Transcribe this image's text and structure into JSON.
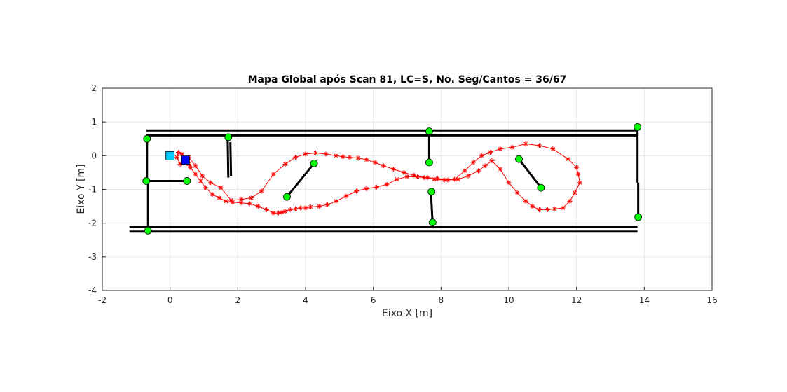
{
  "chart_data": {
    "type": "scatter",
    "title": "Mapa Global após Scan 81, LC=S, No. Seg/Cantos = 36/67",
    "xlabel": "Eixo X [m]",
    "ylabel": "Eixo Y [m]",
    "xlim": [
      -2,
      16
    ],
    "ylim": [
      -4,
      2
    ],
    "xticks": [
      "-2",
      "0",
      "2",
      "4",
      "6",
      "8",
      "10",
      "12",
      "14",
      "16"
    ],
    "yticks": [
      "2",
      "1",
      "0",
      "-1",
      "-2",
      "-3",
      "-4"
    ],
    "grid": true,
    "colors": {
      "walls": "#000000",
      "corners": "#00ff00",
      "trajectory": "#ff0000",
      "start_marker": "#00ccff",
      "robot_marker": "#0000ff",
      "grid": "#e6e6e6"
    },
    "wall_segments": [
      {
        "x": [
          -0.7,
          13.8
        ],
        "y": [
          0.75,
          0.75
        ]
      },
      {
        "x": [
          -0.7,
          13.8
        ],
        "y": [
          0.6,
          0.6
        ]
      },
      {
        "x": [
          -1.2,
          13.8
        ],
        "y": [
          -2.12,
          -2.12
        ]
      },
      {
        "x": [
          -1.2,
          13.8
        ],
        "y": [
          -2.25,
          -2.25
        ]
      },
      {
        "x": [
          -0.68,
          -0.68
        ],
        "y": [
          0.5,
          -0.75
        ]
      },
      {
        "x": [
          -0.65,
          0.5
        ],
        "y": [
          -0.75,
          -0.75
        ]
      },
      {
        "x": [
          -0.65,
          -0.65
        ],
        "y": [
          -0.75,
          -2.22
        ]
      },
      {
        "x": [
          1.7,
          1.72
        ],
        "y": [
          0.55,
          -0.65
        ]
      },
      {
        "x": [
          1.78,
          1.8
        ],
        "y": [
          0.4,
          -0.6
        ]
      },
      {
        "x": [
          7.65,
          7.65
        ],
        "y": [
          0.7,
          -0.2
        ]
      },
      {
        "x": [
          7.7,
          7.75
        ],
        "y": [
          -1.05,
          -2.0
        ]
      },
      {
        "x": [
          3.45,
          4.25
        ],
        "y": [
          -1.22,
          -0.23
        ]
      },
      {
        "x": [
          10.3,
          10.95
        ],
        "y": [
          -0.1,
          -0.95
        ]
      },
      {
        "x": [
          13.8,
          13.8
        ],
        "y": [
          0.85,
          -0.8
        ]
      },
      {
        "x": [
          13.82,
          13.82
        ],
        "y": [
          -0.8,
          -1.85
        ]
      }
    ],
    "corners": {
      "x": [
        -0.68,
        -0.7,
        0.5,
        -0.65,
        1.72,
        7.65,
        7.65,
        4.25,
        3.45,
        7.72,
        7.75,
        10.3,
        10.95,
        13.8,
        13.82
      ],
      "y": [
        0.5,
        -0.75,
        -0.75,
        -2.22,
        0.55,
        0.72,
        -0.2,
        -0.23,
        -1.22,
        -1.07,
        -1.98,
        -0.1,
        -0.95,
        0.85,
        -1.82
      ]
    },
    "trajectory": {
      "x": [
        0.45,
        0.3,
        0.2,
        0.25,
        0.35,
        0.45,
        0.55,
        0.6,
        0.75,
        0.9,
        1.05,
        1.25,
        1.45,
        1.65,
        1.85,
        2.1,
        2.35,
        2.6,
        2.85,
        3.05,
        3.2,
        3.3,
        3.4,
        3.55,
        3.7,
        3.85,
        4.0,
        4.15,
        4.4,
        4.65,
        4.9,
        5.2,
        5.5,
        5.8,
        6.1,
        6.4,
        6.7,
        7.0,
        7.3,
        7.6,
        7.9,
        8.2,
        8.5,
        8.8,
        9.1,
        9.3,
        9.5,
        9.75,
        10.0,
        10.25,
        10.5,
        10.7,
        10.9,
        11.15,
        11.35,
        11.6,
        11.8,
        11.95,
        12.1,
        12.05,
        12.0,
        11.75,
        11.3,
        10.9,
        10.5,
        10.1,
        9.75,
        9.45,
        9.2,
        8.95,
        8.7,
        8.4,
        8.1,
        7.8,
        7.5,
        7.2,
        6.9,
        6.6,
        6.3,
        6.05,
        5.8,
        5.55,
        5.3,
        5.1,
        4.9,
        4.6,
        4.3,
        4.0,
        3.7,
        3.4,
        3.05,
        2.7,
        2.4,
        2.1,
        1.8,
        1.5,
        1.2,
        0.95,
        0.75,
        0.55,
        0.45
      ],
      "y": [
        -0.15,
        -0.25,
        -0.05,
        0.1,
        0.05,
        -0.1,
        -0.25,
        -0.35,
        -0.55,
        -0.75,
        -0.95,
        -1.15,
        -1.25,
        -1.35,
        -1.38,
        -1.4,
        -1.42,
        -1.5,
        -1.6,
        -1.7,
        -1.7,
        -1.68,
        -1.65,
        -1.6,
        -1.58,
        -1.55,
        -1.55,
        -1.52,
        -1.5,
        -1.45,
        -1.35,
        -1.2,
        -1.05,
        -0.98,
        -0.93,
        -0.85,
        -0.7,
        -0.62,
        -0.63,
        -0.65,
        -0.68,
        -0.72,
        -0.7,
        -0.6,
        -0.45,
        -0.3,
        -0.15,
        -0.4,
        -0.8,
        -1.1,
        -1.35,
        -1.5,
        -1.6,
        -1.6,
        -1.58,
        -1.55,
        -1.35,
        -1.1,
        -0.8,
        -0.55,
        -0.35,
        -0.1,
        0.2,
        0.3,
        0.35,
        0.25,
        0.2,
        0.1,
        0.0,
        -0.2,
        -0.45,
        -0.7,
        -0.72,
        -0.7,
        -0.65,
        -0.58,
        -0.5,
        -0.4,
        -0.3,
        -0.2,
        -0.12,
        -0.07,
        -0.05,
        -0.03,
        0.0,
        0.05,
        0.08,
        0.05,
        -0.05,
        -0.25,
        -0.55,
        -1.05,
        -1.25,
        -1.3,
        -1.32,
        -0.95,
        -0.8,
        -0.6,
        -0.3,
        -0.05,
        -0.15
      ]
    },
    "start_marker": {
      "x": 0.0,
      "y": 0.0
    },
    "robot_marker": {
      "x": 0.45,
      "y": -0.13
    }
  }
}
